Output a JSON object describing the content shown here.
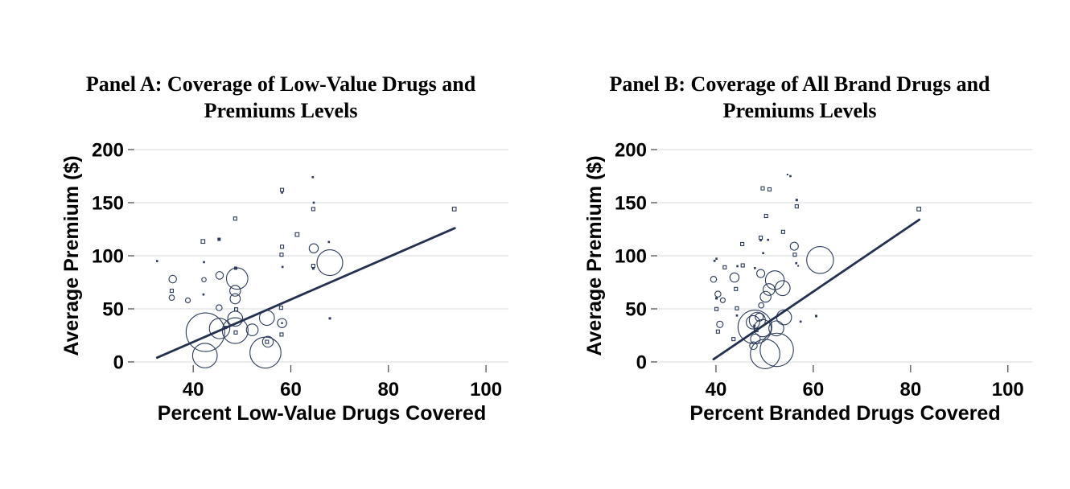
{
  "figure": {
    "background": "#ffffff",
    "gridline_color": "#dde0e4",
    "tick_color": "#444444"
  },
  "chart_data": [
    {
      "type": "scatter",
      "title_line1": "Panel A: Coverage of Low-Value Drugs and",
      "title_line2": "Premiums Levels",
      "xlabel": "Percent Low-Value Drugs Covered",
      "ylabel": "Average Premium ($)",
      "xticks": [
        40,
        60,
        80,
        100
      ],
      "yticks": [
        0,
        50,
        100,
        150,
        200
      ],
      "xlim": [
        28.1,
        104.6
      ],
      "ylim": [
        0,
        200
      ],
      "grid": "horizontal",
      "legend": "none",
      "marker_color": "#2b3a5c",
      "line_color": "#24304f",
      "trend_line": {
        "x1": 32.6,
        "y1": 4,
        "x2": 93.6,
        "y2": 126
      },
      "points": [
        [
          64.5,
          174,
          1.3,
          "d"
        ],
        [
          58.2,
          162,
          2,
          "s"
        ],
        [
          58.2,
          159.5,
          1.3,
          "d"
        ],
        [
          64.7,
          150,
          1.3,
          "d"
        ],
        [
          64.6,
          144,
          2,
          "s"
        ],
        [
          93.5,
          144,
          2.3,
          "s"
        ],
        [
          48.6,
          135,
          2,
          "s"
        ],
        [
          61.3,
          120,
          2.3,
          "s"
        ],
        [
          42.0,
          113.5,
          2.3,
          "s"
        ],
        [
          45.3,
          115.5,
          2,
          "d"
        ],
        [
          67.8,
          113,
          1.3,
          "d"
        ],
        [
          58.2,
          108.5,
          2,
          "s"
        ],
        [
          64.7,
          107,
          5.7,
          "c"
        ],
        [
          68.0,
          93.5,
          16,
          "c"
        ],
        [
          32.6,
          95,
          1.3,
          "d"
        ],
        [
          42.2,
          94,
          1.3,
          "d"
        ],
        [
          58.1,
          101,
          2,
          "s"
        ],
        [
          58.3,
          89.5,
          1.3,
          "d"
        ],
        [
          64.6,
          90.5,
          2,
          "s"
        ],
        [
          64.6,
          88,
          1.5,
          "d"
        ],
        [
          35.8,
          78,
          4.7,
          "c"
        ],
        [
          45.4,
          81.5,
          4.7,
          "c"
        ],
        [
          49.0,
          78.5,
          13.3,
          "c"
        ],
        [
          42.2,
          77.5,
          2.7,
          "c"
        ],
        [
          48.7,
          88.3,
          2,
          "d"
        ],
        [
          48.6,
          67,
          6.7,
          "c"
        ],
        [
          48.6,
          59.5,
          6.3,
          "c"
        ],
        [
          35.6,
          67,
          2,
          "s"
        ],
        [
          35.6,
          60.5,
          3.3,
          "c"
        ],
        [
          42.1,
          63.5,
          1.3,
          "d"
        ],
        [
          38.9,
          58,
          3,
          "c"
        ],
        [
          45.3,
          51,
          3.7,
          "c"
        ],
        [
          48.8,
          49.5,
          2,
          "s"
        ],
        [
          58.0,
          51,
          2,
          "s"
        ],
        [
          55.1,
          41.5,
          9.3,
          "c"
        ],
        [
          58.2,
          36.6,
          5.7,
          "c"
        ],
        [
          58.2,
          36.6,
          1.2,
          "d"
        ],
        [
          68.0,
          41,
          1.5,
          "d"
        ],
        [
          42.5,
          28,
          24,
          "c"
        ],
        [
          45.4,
          31.5,
          12.7,
          "c"
        ],
        [
          48.6,
          29.5,
          16,
          "c"
        ],
        [
          48.6,
          40.7,
          9.3,
          "c"
        ],
        [
          46.6,
          32.5,
          2,
          "d"
        ],
        [
          48.7,
          27.7,
          2,
          "s"
        ],
        [
          52.1,
          30.2,
          7.3,
          "c"
        ],
        [
          55.3,
          19,
          6.7,
          "c"
        ],
        [
          55.1,
          18.9,
          2,
          "s"
        ],
        [
          58.1,
          25.8,
          2,
          "s"
        ],
        [
          54.8,
          8.8,
          19.3,
          "c"
        ],
        [
          42.4,
          6,
          15.3,
          "c"
        ]
      ]
    },
    {
      "type": "scatter",
      "title_line1": "Panel B: Coverage of All Brand Drugs and",
      "title_line2": "Premiums Levels",
      "xlabel": "Percent Branded Drugs Covered",
      "ylabel": "Average Premium ($)",
      "xticks": [
        40,
        60,
        80,
        100
      ],
      "yticks": [
        0,
        50,
        100,
        150,
        200
      ],
      "xlim": [
        28.1,
        105.0
      ],
      "ylim": [
        0,
        200
      ],
      "grid": "horizontal",
      "legend": "none",
      "marker_color": "#2b3a5c",
      "line_color": "#24304f",
      "trend_line": {
        "x1": 39.5,
        "y1": 2.5,
        "x2": 81.8,
        "y2": 134
      },
      "points": [
        [
          55.3,
          175,
          1.3,
          "d"
        ],
        [
          54.7,
          176.5,
          1,
          "d"
        ],
        [
          49.6,
          163.5,
          2,
          "s"
        ],
        [
          51.0,
          162.5,
          2,
          "s"
        ],
        [
          56.6,
          152.5,
          1.5,
          "d"
        ],
        [
          56.6,
          146.5,
          2,
          "s"
        ],
        [
          81.7,
          144,
          2.3,
          "s"
        ],
        [
          50.3,
          137.5,
          2,
          "s"
        ],
        [
          53.8,
          122.5,
          2,
          "s"
        ],
        [
          49.2,
          117,
          2,
          "s"
        ],
        [
          49.2,
          114.5,
          1.3,
          "d"
        ],
        [
          50.7,
          115,
          1.3,
          "d"
        ],
        [
          45.4,
          111,
          2,
          "s"
        ],
        [
          56.1,
          109,
          5,
          "c"
        ],
        [
          49.7,
          102.5,
          1.3,
          "d"
        ],
        [
          56.2,
          101,
          2,
          "s"
        ],
        [
          61.4,
          96,
          16.7,
          "c"
        ],
        [
          39.7,
          95.2,
          1.3,
          "d"
        ],
        [
          40.1,
          97.2,
          1.3,
          "d"
        ],
        [
          41.8,
          89.1,
          2,
          "s"
        ],
        [
          45.5,
          90.9,
          2,
          "s"
        ],
        [
          44.4,
          90.2,
          1.3,
          "d"
        ],
        [
          48.0,
          88.4,
          1.3,
          "d"
        ],
        [
          56.5,
          93,
          1.3,
          "d"
        ],
        [
          56.9,
          90.5,
          1,
          "d"
        ],
        [
          39.5,
          77.8,
          3.7,
          "c"
        ],
        [
          43.8,
          79.5,
          5.7,
          "c"
        ],
        [
          49.2,
          83.3,
          5,
          "c"
        ],
        [
          52.1,
          77,
          11.7,
          "c"
        ],
        [
          53.7,
          69.5,
          9.3,
          "c"
        ],
        [
          50.9,
          68.2,
          7.3,
          "c"
        ],
        [
          50.2,
          61.4,
          6.7,
          "c"
        ],
        [
          44.1,
          68.7,
          2,
          "s"
        ],
        [
          40.4,
          63.9,
          3.7,
          "c"
        ],
        [
          40.1,
          59.9,
          1.5,
          "d"
        ],
        [
          41.4,
          58.1,
          3,
          "c"
        ],
        [
          40.1,
          49.8,
          2,
          "s"
        ],
        [
          44.3,
          50.5,
          2,
          "s"
        ],
        [
          49.3,
          53.3,
          3.3,
          "c"
        ],
        [
          44.3,
          43.7,
          1.3,
          "d"
        ],
        [
          40.8,
          35.4,
          4,
          "c"
        ],
        [
          40.4,
          28.6,
          2,
          "s"
        ],
        [
          43.6,
          21.5,
          2,
          "s"
        ],
        [
          60.6,
          43.2,
          1.5,
          "d"
        ],
        [
          57.4,
          38,
          1.3,
          "d"
        ],
        [
          48.0,
          32.9,
          21,
          "c"
        ],
        [
          48.5,
          39.2,
          10,
          "c"
        ],
        [
          48.9,
          42.2,
          5,
          "c"
        ],
        [
          47.6,
          37.3,
          8.3,
          "c"
        ],
        [
          49.6,
          31.8,
          10.7,
          "c"
        ],
        [
          52.4,
          31.6,
          9.3,
          "c"
        ],
        [
          48.1,
          21.7,
          6,
          "c"
        ],
        [
          54.0,
          42,
          9.3,
          "c"
        ],
        [
          47.7,
          15.3,
          4.7,
          "c"
        ],
        [
          52.5,
          11.4,
          20.7,
          "c"
        ],
        [
          50.1,
          7.5,
          18.3,
          "c"
        ],
        [
          48.3,
          30,
          2,
          "s"
        ],
        [
          47.9,
          34,
          1.5,
          "d"
        ]
      ]
    }
  ]
}
